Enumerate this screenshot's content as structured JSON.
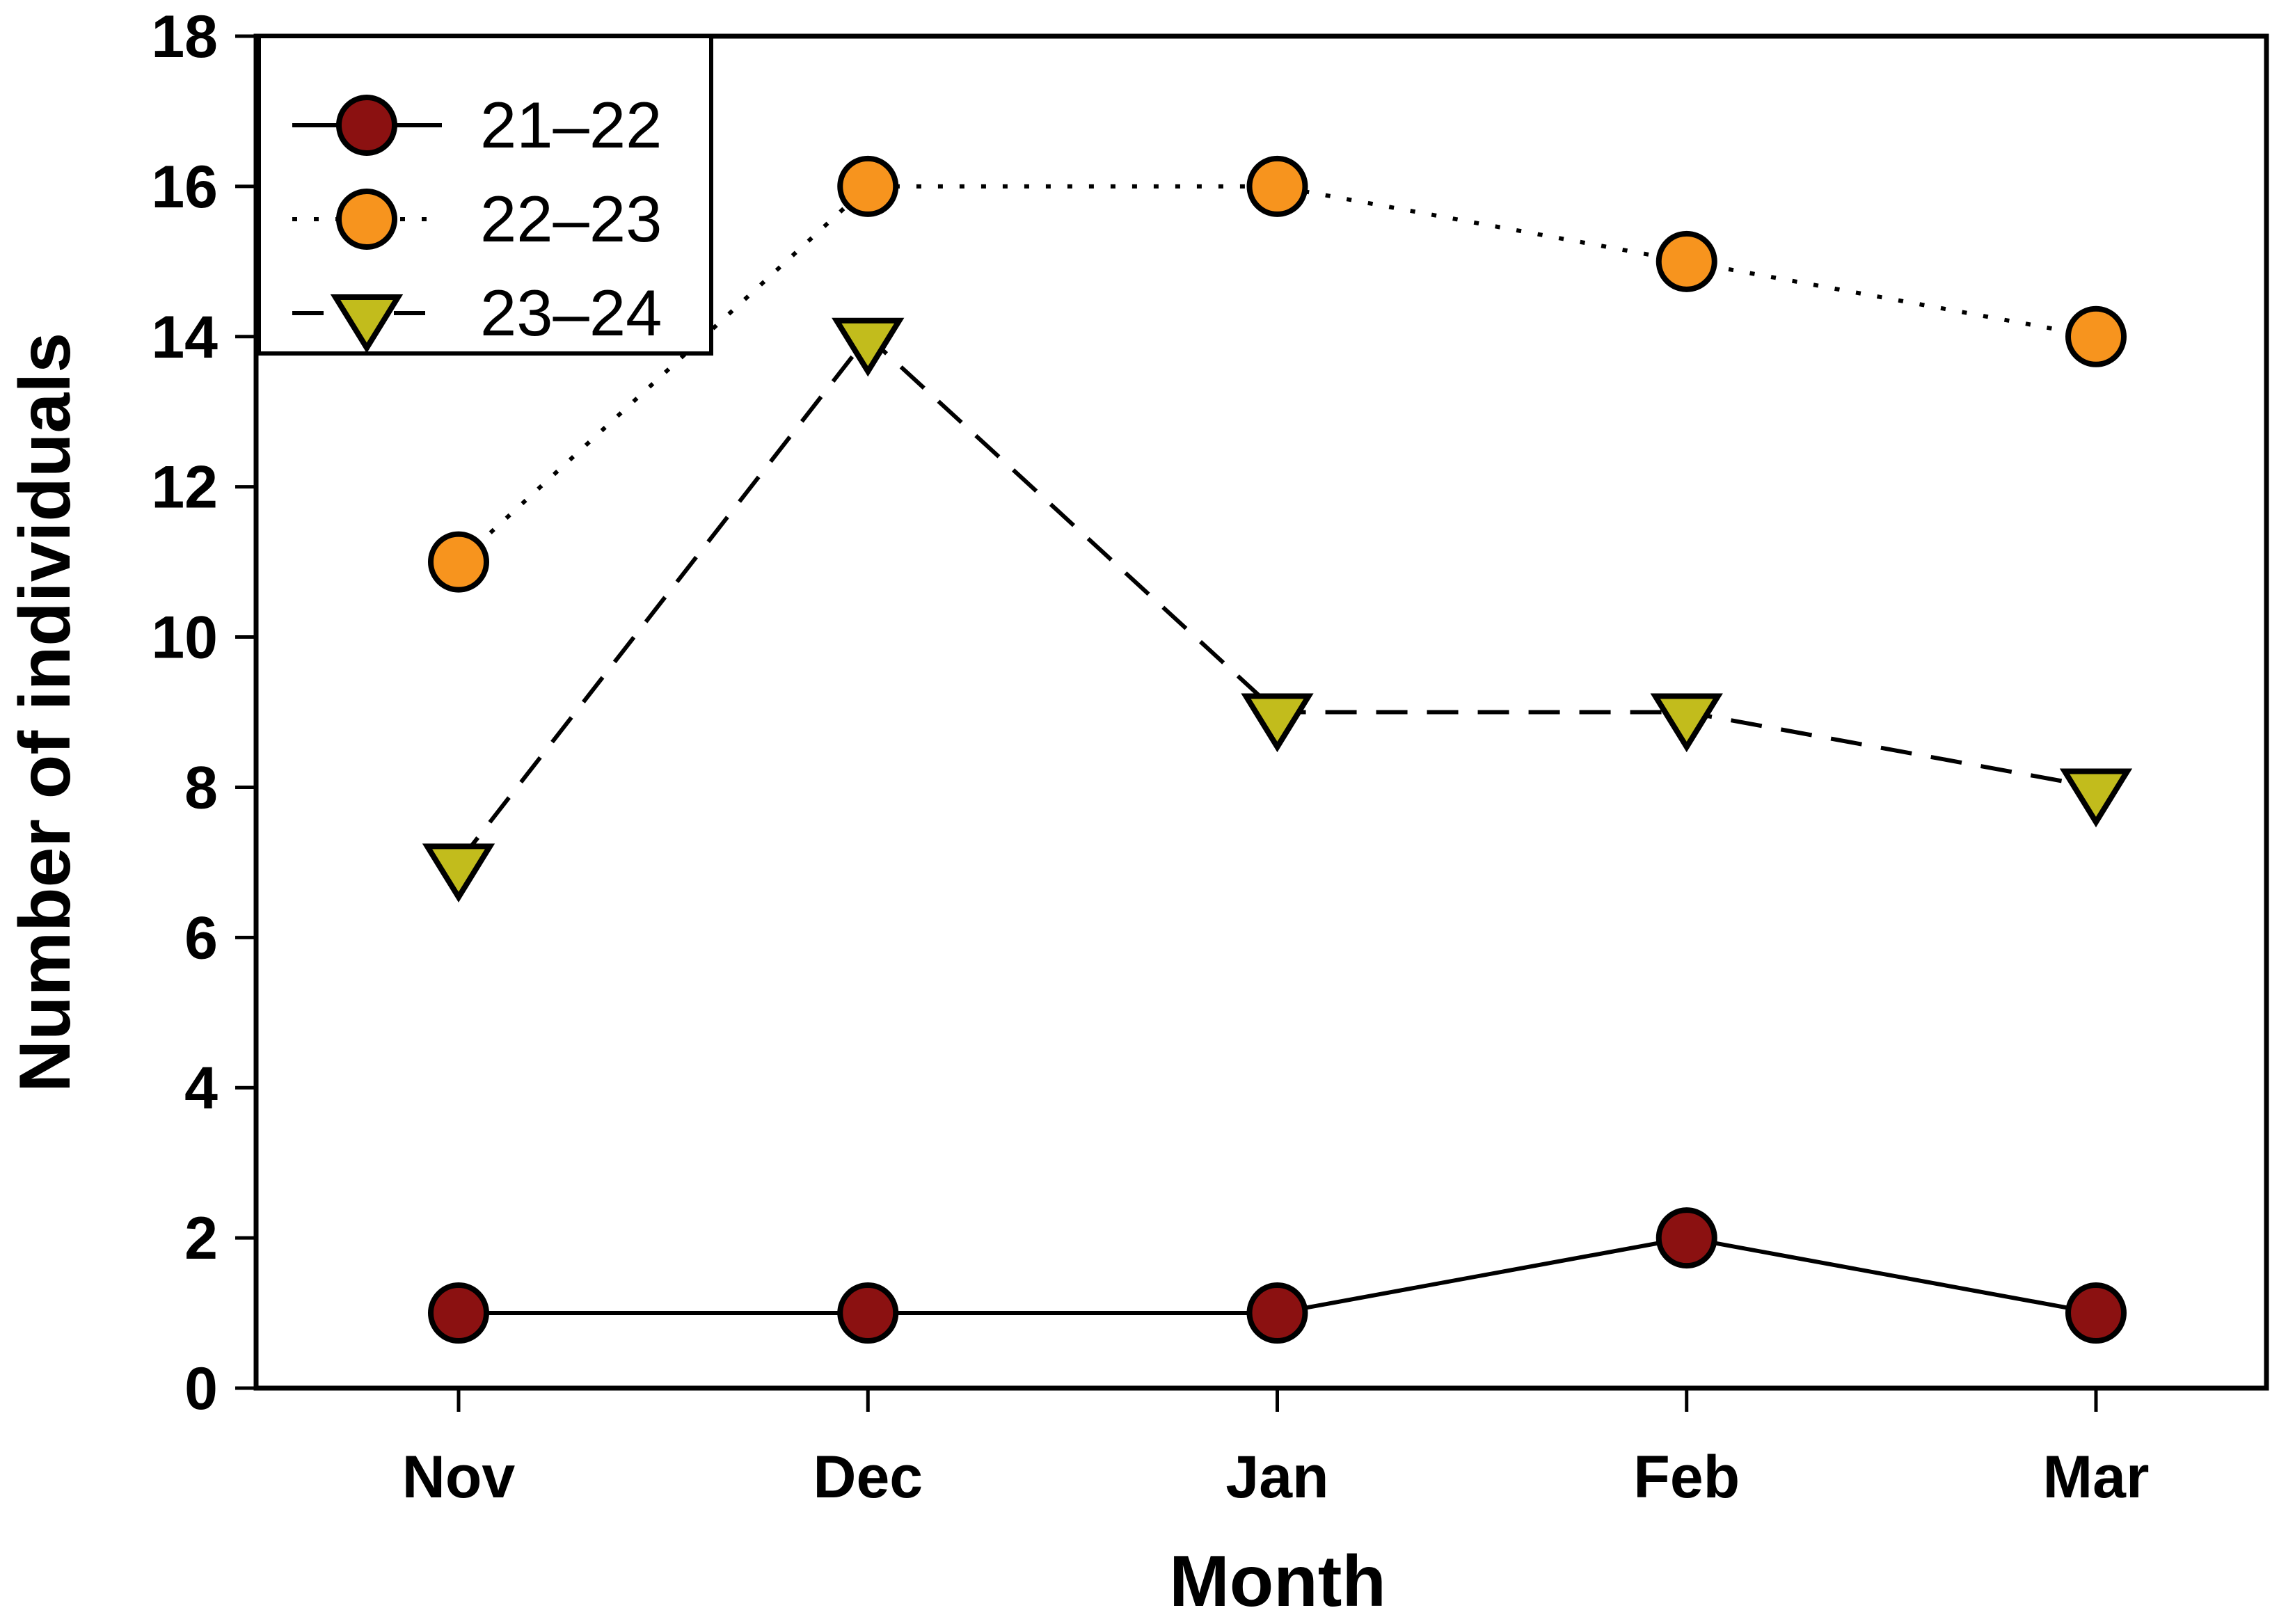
{
  "chart_data": {
    "type": "line",
    "title": "",
    "xlabel": "Month",
    "ylabel": "Number of individuals",
    "categories": [
      "Nov",
      "Dec",
      "Jan",
      "Feb",
      "Mar"
    ],
    "ylim": [
      0,
      18
    ],
    "ytick_step": 2,
    "yticks": [
      0,
      2,
      4,
      6,
      8,
      10,
      12,
      14,
      16,
      18
    ],
    "grid": false,
    "legend_position": "top-left",
    "background": "#FFFFFF",
    "axis_color": "#000000",
    "series": [
      {
        "name": "21–22",
        "values": [
          1,
          1,
          1,
          2,
          1
        ],
        "marker": "circle",
        "color": "#8B1111",
        "line_style": "solid"
      },
      {
        "name": "22–23",
        "values": [
          11,
          16,
          16,
          15,
          14
        ],
        "marker": "circle",
        "color": "#F7941E",
        "line_style": "dotted"
      },
      {
        "name": "23–24",
        "values": [
          7,
          14,
          9,
          9,
          8
        ],
        "marker": "triangle-down",
        "color": "#C2BC1C",
        "line_style": "dashed"
      }
    ]
  }
}
